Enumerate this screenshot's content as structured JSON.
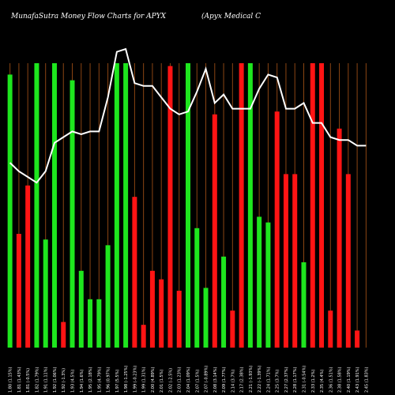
{
  "header": {
    "title": "MunafaSutra Money Flow  Charts for APYX",
    "subtitle": "(Apyx Medical C"
  },
  "chart_data": {
    "type": "bar",
    "title": "MunafaSutra Money Flow  Charts for APYX",
    "subtitle": "(Apyx Medical C",
    "xlabel": "",
    "ylabel": "",
    "grid": true,
    "ylim": [
      0,
      100
    ],
    "colors": {
      "up": "#1ee61e",
      "down": "#ff1414",
      "line": "#ffffff",
      "grid": "#8b4513",
      "background": "#000000"
    },
    "categories": [
      "1.80 (1.15%)",
      "1.81 (1.43%)",
      "1.81 (-0.5%)",
      "1.82 (1.79%)",
      "1.91 (1.11%)",
      "1.92 (1.06%)",
      "1.92 (-1.3%)",
      "1.93 (4.5%)",
      "1.94 (1.6%)",
      "1.95 (2.18%)",
      "1.95 (4.79%)",
      "1.96 (0.97%)",
      "1.97 (5.5%)",
      "1.98 (-1.25%)",
      "1.99 (-0.23%)",
      "1.99 (1.31%)",
      "2.00 (4.89%)",
      "2.01 (1.5%)",
      "2.02 (-2.5%)",
      "2.03 (1.23%)",
      "2.04 (1.09%)",
      "2.07 (1.5%)",
      "2.07 (-0.89%)",
      "2.08 (3.14%)",
      "2.09 (1.77%)",
      "2.14 (3.7%)",
      "2.17 (2.38%)",
      "2.21 (-1.93%)",
      "2.22 (-1.39%)",
      "2.24 (1.71%)",
      "2.25 (3.7%)",
      "2.27 (2.37%)",
      "2.28 (1.17%)",
      "2.31 (-0.54%)",
      "2.33 (1.2%)",
      "2.35 (4.4%)",
      "2.36 (1.51%)",
      "2.38 (1.58%)",
      "2.40 (1.19%)",
      "2.43 (1.91%)",
      "2.45 (1.83%)"
    ],
    "series": [
      {
        "values": [
          96,
          40,
          57,
          100,
          38,
          100,
          9,
          94,
          27,
          17,
          17,
          36,
          100,
          100,
          53,
          8,
          27,
          24,
          99,
          20,
          100,
          42,
          21,
          82,
          32,
          13,
          100,
          100,
          46,
          44,
          83,
          61,
          61,
          30,
          100,
          100,
          13,
          77,
          61,
          6,
          0
        ],
        "directions": [
          "up",
          "down",
          "down",
          "up",
          "up",
          "up",
          "down",
          "up",
          "up",
          "up",
          "up",
          "up",
          "up",
          "up",
          "down",
          "down",
          "down",
          "down",
          "down",
          "down",
          "up",
          "up",
          "up",
          "down",
          "up",
          "down",
          "down",
          "up",
          "up",
          "up",
          "down",
          "down",
          "down",
          "up",
          "down",
          "down",
          "down",
          "down",
          "down",
          "down",
          "down"
        ]
      },
      {
        "values": [
          65,
          62,
          60,
          58,
          62,
          72,
          74,
          76,
          75,
          76,
          76,
          88,
          104,
          105,
          93,
          92,
          92,
          88,
          84,
          82,
          83,
          90,
          98,
          86,
          89,
          84,
          84,
          84,
          91,
          96,
          95,
          84,
          84,
          86,
          79,
          79,
          74,
          73,
          73,
          71,
          71
        ]
      }
    ]
  }
}
